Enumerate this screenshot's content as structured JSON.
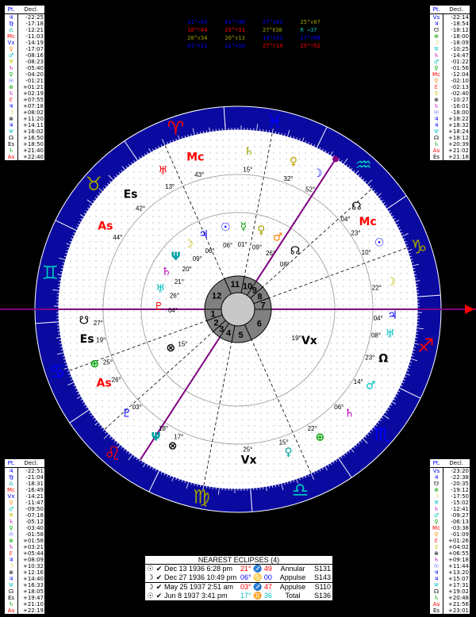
{
  "chart_meta": {
    "ascendant_longitude": 86,
    "mc_longitude": 323
  },
  "colors": {
    "ring": "#0a0aa0",
    "axis": "#800080",
    "fire": "#ff0000",
    "earth": "#a0a000",
    "air": "#00c0c0",
    "water": "#0000ff",
    "hub": "#808080"
  },
  "signs": [
    {
      "glyph": "♈",
      "element": "fire"
    },
    {
      "glyph": "♉",
      "element": "earth"
    },
    {
      "glyph": "♊",
      "element": "air"
    },
    {
      "glyph": "♋",
      "element": "water"
    },
    {
      "glyph": "♌",
      "element": "fire"
    },
    {
      "glyph": "♍",
      "element": "earth"
    },
    {
      "glyph": "♎",
      "element": "air"
    },
    {
      "glyph": "♏",
      "element": "water"
    },
    {
      "glyph": "♐",
      "element": "fire"
    },
    {
      "glyph": "♑",
      "element": "earth"
    },
    {
      "glyph": "♒",
      "element": "air"
    },
    {
      "glyph": "♓",
      "element": "water"
    }
  ],
  "house_numbers": [
    "1",
    "2",
    "3",
    "4",
    "5",
    "6",
    "7",
    "8",
    "9",
    "10",
    "11",
    "12"
  ],
  "house_cusps": [
    86,
    106,
    128,
    143,
    165,
    200,
    266,
    286,
    308,
    323,
    345,
    20
  ],
  "planets": [
    {
      "glyph": "☉",
      "label": "06°",
      "lon": 356,
      "ring": "inner",
      "color": "#0000ff"
    },
    {
      "glyph": "☿",
      "label": "01°",
      "lon": 351,
      "ring": "inner",
      "color": "#00a000"
    },
    {
      "glyph": "♀",
      "label": "09°",
      "lon": 339,
      "ring": "inner",
      "color": "#a0a000"
    },
    {
      "glyph": "♂",
      "label": "26°",
      "lon": 336,
      "ring": "inner",
      "color": "#ff8000"
    },
    {
      "glyph": "☽",
      "label": "09°",
      "lon": 40,
      "ring": "inner",
      "color": "#c0c000"
    },
    {
      "glyph": "♃",
      "label": "06°",
      "lon": 30,
      "ring": "inner",
      "color": "#0000ff"
    },
    {
      "glyph": "♄",
      "label": "21°",
      "lon": 60,
      "ring": "inner",
      "color": "#c000c0"
    },
    {
      "glyph": "♅",
      "label": "26°",
      "lon": 68,
      "ring": "inner",
      "color": "#00c0c0"
    },
    {
      "glyph": "Ψ",
      "label": "20°",
      "lon": 50,
      "ring": "inner",
      "color": "#00a0a0"
    },
    {
      "glyph": "♇",
      "label": "04°",
      "lon": 77,
      "ring": "inner",
      "color": "#ff0000"
    },
    {
      "glyph": "☊",
      "label": "08°",
      "lon": 310,
      "ring": "inner",
      "color": "#000000"
    },
    {
      "glyph": "⊗",
      "label": "15°",
      "lon": 118,
      "ring": "inner",
      "color": "#000000"
    },
    {
      "glyph": "Vx",
      "label": "19°",
      "lon": 240,
      "ring": "inner",
      "color": "#000000"
    },
    {
      "glyph": "☉",
      "label": "10°",
      "lon": 290,
      "ring": "outer",
      "color": "#0000ff"
    },
    {
      "glyph": "Mc",
      "label": "23°",
      "lon": 300,
      "ring": "outer",
      "color": "#ff0000"
    },
    {
      "glyph": "☽",
      "label": "22°",
      "lon": 275,
      "ring": "outer",
      "color": "#c0c000"
    },
    {
      "glyph": "♃",
      "label": "04°",
      "lon": 262,
      "ring": "outer",
      "color": "#0000ff"
    },
    {
      "glyph": "♅",
      "label": "08°",
      "lon": 256,
      "ring": "outer",
      "color": "#00c0c0"
    },
    {
      "glyph": "Ω",
      "label": "23°",
      "lon": 246,
      "ring": "outer",
      "color": "#000000"
    },
    {
      "glyph": "♂",
      "label": "14°",
      "lon": 235,
      "ring": "outer",
      "color": "#00c0c0"
    },
    {
      "glyph": "♄",
      "label": "06°",
      "lon": 222,
      "ring": "outer",
      "color": "#c000c0"
    },
    {
      "glyph": "⊕",
      "label": "22°",
      "lon": 208,
      "ring": "outer",
      "color": "#00a000"
    },
    {
      "glyph": "♀",
      "label": "15°",
      "lon": 195,
      "ring": "outer",
      "color": "#00a0a0"
    },
    {
      "glyph": "Vx",
      "label": "25°",
      "lon": 180,
      "ring": "outer",
      "color": "#000000"
    },
    {
      "glyph": "⊗",
      "label": "17°",
      "lon": 150,
      "ring": "outer",
      "color": "#000000"
    },
    {
      "glyph": "Ψ",
      "label": "18°",
      "lon": 145,
      "ring": "outer",
      "color": "#00a0a0"
    },
    {
      "glyph": "♇",
      "label": "03°",
      "lon": 130,
      "ring": "outer",
      "color": "#0000ff"
    },
    {
      "glyph": "As",
      "label": "26°",
      "lon": 116,
      "ring": "outer",
      "color": "#ff0000"
    },
    {
      "glyph": "⊕",
      "label": "25°",
      "lon": 108,
      "ring": "outer",
      "color": "#00a000"
    },
    {
      "glyph": "Es",
      "label": "19°",
      "lon": 98,
      "ring": "outer",
      "color": "#000000"
    },
    {
      "glyph": "☋",
      "label": "27°",
      "lon": 92,
      "ring": "outer",
      "color": "#000000"
    },
    {
      "glyph": "♅",
      "label": "13°",
      "lon": 25,
      "ring": "outer",
      "color": "#ff0000"
    },
    {
      "glyph": "As",
      "label": "44°",
      "lon": 55,
      "ring": "outer",
      "color": "#ff0000"
    },
    {
      "glyph": "Es",
      "label": "42°",
      "lon": 40,
      "ring": "outer",
      "color": "#000000"
    },
    {
      "glyph": "Mc",
      "label": "43°",
      "lon": 12,
      "ring": "outer",
      "color": "#ff0000"
    },
    {
      "glyph": "♄",
      "label": "15°",
      "lon": 352,
      "ring": "outer",
      "color": "#a0a000"
    },
    {
      "glyph": "♀",
      "label": "32°",
      "lon": 335,
      "ring": "outer",
      "color": "#c0a000"
    },
    {
      "glyph": "☽",
      "label": "52°",
      "lon": 325,
      "ring": "outer",
      "color": "#0000ff"
    },
    {
      "glyph": "☊",
      "label": "04°",
      "lon": 305,
      "ring": "outer",
      "color": "#000000"
    }
  ],
  "aspect_grid": [
    {
      "text": "11°♒05",
      "color": "#0000ff"
    },
    {
      "text": "01°♈46",
      "color": "#0000ff"
    },
    {
      "text": "27°♉01",
      "color": "#0000ff"
    },
    {
      "text": "25°♉07",
      "color": "#a0a000"
    },
    {
      "text": "10°♈44",
      "color": "#ff0000"
    },
    {
      "text": "25°♈31",
      "color": "#ff0000"
    },
    {
      "text": "27°Ⅱ38",
      "color": "#a0a000"
    },
    {
      "text": "R ♒37",
      "color": "#00c0c0"
    },
    {
      "text": "20°♉34",
      "color": "#a0a000"
    },
    {
      "text": "20°♉13",
      "color": "#a0a000"
    },
    {
      "text": "19°♓23",
      "color": "#0000ff"
    },
    {
      "text": "17°♓08",
      "color": "#0000ff"
    },
    {
      "text": "01°♓21",
      "color": "#0000ff"
    },
    {
      "text": "12°♓10",
      "color": "#0000ff"
    },
    {
      "text": "27°♈14",
      "color": "#ff0000"
    },
    {
      "text": "25°♈52",
      "color": "#ff0000"
    }
  ],
  "tables": {
    "header_pt": "Pt.",
    "header_decl": "Decl.",
    "top_left": [
      {
        "g": "♃",
        "c": "#0000ff",
        "v": "-22:25"
      },
      {
        "g": "♍",
        "c": "#0000ff",
        "v": "-17:18"
      },
      {
        "g": "♎",
        "c": "#00a0a0",
        "v": "-12:21"
      },
      {
        "g": "Mc",
        "c": "#ff0000",
        "v": "-11:03"
      },
      {
        "g": "Vx",
        "c": "#0000ff",
        "v": "-14:19"
      },
      {
        "g": "♀",
        "c": "#ff8000",
        "v": "-17:07"
      },
      {
        "g": "♂",
        "c": "#00c0c0",
        "v": "-08:16"
      },
      {
        "g": "♅",
        "c": "#c0c000",
        "v": "-08:23"
      },
      {
        "g": "♄",
        "c": "#c000c0",
        "v": "-05:40"
      },
      {
        "g": "♀",
        "c": "#00a000",
        "v": "-04:20"
      },
      {
        "g": "☉",
        "c": "#0000ff",
        "v": "-01:21"
      },
      {
        "g": "⊕",
        "c": "#00a000",
        "v": "+01:21"
      },
      {
        "g": "♄",
        "c": "#c000c0",
        "v": "+02:19"
      },
      {
        "g": "♇",
        "c": "#ff0000",
        "v": "+07:55"
      },
      {
        "g": "♃",
        "c": "#0000ff",
        "v": "+07:18"
      },
      {
        "g": "☽",
        "c": "#c0c000",
        "v": "+08:02"
      },
      {
        "g": "⊗",
        "c": "#000000",
        "v": "+11:20"
      },
      {
        "g": "♃",
        "c": "#0000ff",
        "v": "+14:11"
      },
      {
        "g": "Ψ",
        "c": "#00c0c0",
        "v": "+16:02"
      },
      {
        "g": "☊",
        "c": "#000000",
        "v": "+16:50"
      },
      {
        "g": "Es",
        "c": "#000000",
        "v": "+18:50"
      },
      {
        "g": "♄",
        "c": "#00a000",
        "v": "+21:40"
      },
      {
        "g": "As",
        "c": "#ff0000",
        "v": "+22:40"
      }
    ],
    "top_right": [
      {
        "g": "Vs",
        "c": "#0000ff",
        "v": "-22:14"
      },
      {
        "g": "♃",
        "c": "#0000ff",
        "v": "-18:54"
      },
      {
        "g": "☋",
        "c": "#000000",
        "v": "-18:12"
      },
      {
        "g": "⊕",
        "c": "#00a000",
        "v": "-18:00"
      },
      {
        "g": "☽",
        "c": "#c0c000",
        "v": "-18:09"
      },
      {
        "g": "♅",
        "c": "#00c0c0",
        "v": "-10:25"
      },
      {
        "g": "♄",
        "c": "#c000c0",
        "v": "-14:47"
      },
      {
        "g": "♂",
        "c": "#00c0c0",
        "v": "-01:22"
      },
      {
        "g": "♀",
        "c": "#00a000",
        "v": "-01:56"
      },
      {
        "g": "Mc",
        "c": "#ff0000",
        "v": "-12:04"
      },
      {
        "g": "♀",
        "c": "#ff8000",
        "v": "-02:10"
      },
      {
        "g": "♇",
        "c": "#ff0000",
        "v": "-02:13"
      },
      {
        "g": "☿",
        "c": "#c0c000",
        "v": "-02:40"
      },
      {
        "g": "⊗",
        "c": "#000000",
        "v": "-10:27"
      },
      {
        "g": "♄",
        "c": "#c000c0",
        "v": "-16:01"
      },
      {
        "g": "☉",
        "c": "#0000ff",
        "v": "-18:00"
      },
      {
        "g": "♃",
        "c": "#0000ff",
        "v": "+18:22"
      },
      {
        "g": "♃",
        "c": "#0000ff",
        "v": "+18:32"
      },
      {
        "g": "Ψ",
        "c": "#00c0c0",
        "v": "+18:24"
      },
      {
        "g": "☊",
        "c": "#000000",
        "v": "+18:12"
      },
      {
        "g": "♄",
        "c": "#00a000",
        "v": "+20:39"
      },
      {
        "g": "As",
        "c": "#ff0000",
        "v": "+21:02"
      },
      {
        "g": "Es",
        "c": "#000000",
        "v": "+21:18"
      }
    ],
    "bottom_left": [
      {
        "g": "♃",
        "c": "#0000ff",
        "v": "-22:51"
      },
      {
        "g": "♍",
        "c": "#0000ff",
        "v": "-21:04"
      },
      {
        "g": "♎",
        "c": "#00a0a0",
        "v": "-18:31"
      },
      {
        "g": "Mc",
        "c": "#ff0000",
        "v": "-16:49"
      },
      {
        "g": "Vx",
        "c": "#0000ff",
        "v": "-14:21"
      },
      {
        "g": "♀",
        "c": "#ff8000",
        "v": "-11:47"
      },
      {
        "g": "♂",
        "c": "#00c0c0",
        "v": "-09:50"
      },
      {
        "g": "♅",
        "c": "#c0c000",
        "v": "-07:18"
      },
      {
        "g": "♄",
        "c": "#c000c0",
        "v": "-05:12"
      },
      {
        "g": "♀",
        "c": "#00a000",
        "v": "-03:40"
      },
      {
        "g": "☉",
        "c": "#0000ff",
        "v": "-01:58"
      },
      {
        "g": "⊕",
        "c": "#00a000",
        "v": "+01:58"
      },
      {
        "g": "♄",
        "c": "#c000c0",
        "v": "+03:21"
      },
      {
        "g": "♇",
        "c": "#ff0000",
        "v": "+05:44"
      },
      {
        "g": "♃",
        "c": "#0000ff",
        "v": "+08:09"
      },
      {
        "g": "☽",
        "c": "#c0c000",
        "v": "+10:32"
      },
      {
        "g": "⊗",
        "c": "#000000",
        "v": "+12:16"
      },
      {
        "g": "♃",
        "c": "#0000ff",
        "v": "+14:40"
      },
      {
        "g": "Ψ",
        "c": "#00c0c0",
        "v": "+16:33"
      },
      {
        "g": "☊",
        "c": "#000000",
        "v": "+18:05"
      },
      {
        "g": "Es",
        "c": "#000000",
        "v": "+19:47"
      },
      {
        "g": "♄",
        "c": "#00a000",
        "v": "+21:10"
      },
      {
        "g": "As",
        "c": "#ff0000",
        "v": "+22:19"
      }
    ],
    "bottom_right": [
      {
        "g": "Vs",
        "c": "#0000ff",
        "v": "-23:20"
      },
      {
        "g": "♃",
        "c": "#0000ff",
        "v": "-22:38"
      },
      {
        "g": "☋",
        "c": "#000000",
        "v": "-20:35"
      },
      {
        "g": "⊕",
        "c": "#00a000",
        "v": "-19:12"
      },
      {
        "g": "☽",
        "c": "#c0c000",
        "v": "-17:50"
      },
      {
        "g": "♅",
        "c": "#00c0c0",
        "v": "-15:02"
      },
      {
        "g": "♄",
        "c": "#c000c0",
        "v": "-12:41"
      },
      {
        "g": "♂",
        "c": "#00c0c0",
        "v": "-09:27"
      },
      {
        "g": "♀",
        "c": "#00a000",
        "v": "-06:13"
      },
      {
        "g": "Mc",
        "c": "#ff0000",
        "v": "-03:38"
      },
      {
        "g": "♀",
        "c": "#ff8000",
        "v": "-01:09"
      },
      {
        "g": "♇",
        "c": "#ff0000",
        "v": "+01:26"
      },
      {
        "g": "☿",
        "c": "#c0c000",
        "v": "+04:02"
      },
      {
        "g": "⊗",
        "c": "#000000",
        "v": "+06:55"
      },
      {
        "g": "♄",
        "c": "#c000c0",
        "v": "+09:18"
      },
      {
        "g": "☉",
        "c": "#0000ff",
        "v": "+11:44"
      },
      {
        "g": "♃",
        "c": "#0000ff",
        "v": "+13:20"
      },
      {
        "g": "♃",
        "c": "#0000ff",
        "v": "+15:07"
      },
      {
        "g": "Ψ",
        "c": "#00c0c0",
        "v": "+17:31"
      },
      {
        "g": "☊",
        "c": "#000000",
        "v": "+19:02"
      },
      {
        "g": "♄",
        "c": "#00a000",
        "v": "+20:48"
      },
      {
        "g": "As",
        "c": "#ff0000",
        "v": "+21:56"
      },
      {
        "g": "Es",
        "c": "#000000",
        "v": "+23:01"
      }
    ]
  },
  "eclipses": {
    "title": "NEAREST ECLIPSES (4)",
    "rows": [
      {
        "icon": "☉",
        "date": "Dec 13 1936 6:28 pm",
        "deg": "21°",
        "sign": "♐",
        "min": "49",
        "color": "#ff0000",
        "type": "Annular",
        "saros": "S131"
      },
      {
        "icon": "☽",
        "date": "Dec 27 1936 10:49 pm",
        "deg": "06°",
        "sign": "♋",
        "min": "00",
        "color": "#0000ff",
        "type": "Appulse",
        "saros": "S143"
      },
      {
        "icon": "☽",
        "date": "May 25 1937 2:51 am",
        "deg": "03°",
        "sign": "♐",
        "min": "47",
        "color": "#ff0000",
        "type": "Appulse",
        "saros": "S110"
      },
      {
        "icon": "☉",
        "date": "Jun 8 1937 3:41 pm",
        "deg": "17°",
        "sign": "♊",
        "min": "36",
        "color": "#00c0c0",
        "type": "Total",
        "saros": "S136"
      }
    ]
  }
}
